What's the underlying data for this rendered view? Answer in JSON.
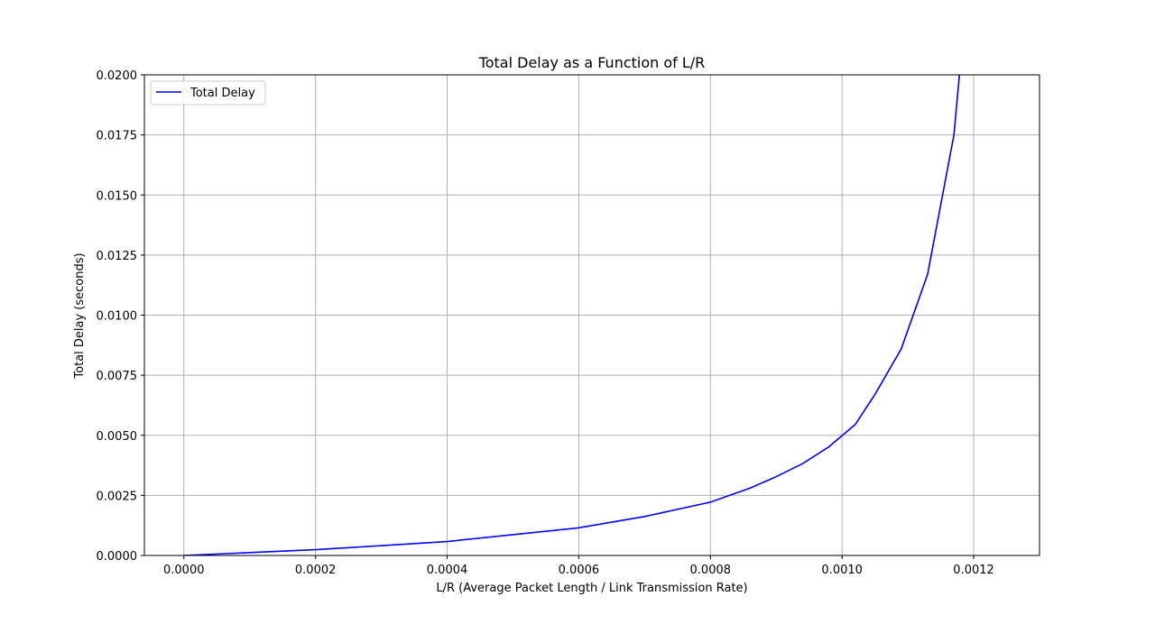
{
  "chart_data": {
    "type": "line",
    "title": "Total Delay as a Function of L/R",
    "xlabel": "L/R (Average Packet Length / Link Transmission Rate)",
    "ylabel": "Total Delay (seconds)",
    "xlim": [
      -6e-05,
      0.0013
    ],
    "ylim": [
      0.0,
      0.02
    ],
    "x_ticks": [
      "0.0000",
      "0.0002",
      "0.0004",
      "0.0006",
      "0.0008",
      "0.0010",
      "0.0012"
    ],
    "x_tick_values": [
      0.0,
      0.0002,
      0.0004,
      0.0006,
      0.0008,
      0.001,
      0.0012
    ],
    "y_ticks": [
      "0.0000",
      "0.0025",
      "0.0050",
      "0.0075",
      "0.0100",
      "0.0125",
      "0.0150",
      "0.0175",
      "0.0200"
    ],
    "y_tick_values": [
      0.0,
      0.0025,
      0.005,
      0.0075,
      0.01,
      0.0125,
      0.015,
      0.0175,
      0.02
    ],
    "grid": true,
    "legend_position": "top-left",
    "series": [
      {
        "name": "Total Delay",
        "color": "#0000ff",
        "x": [
          0.0,
          0.0002,
          0.0004,
          0.0006,
          0.0007,
          0.0008,
          0.00086,
          0.0009,
          0.00094,
          0.00098,
          0.00102,
          0.00105,
          0.00109,
          0.00113,
          0.00117,
          0.00118
        ],
        "y": [
          0.0,
          0.00024,
          0.00058,
          0.00115,
          0.00162,
          0.00222,
          0.0028,
          0.00328,
          0.00382,
          0.00452,
          0.00545,
          0.0067,
          0.0086,
          0.0117,
          0.0175,
          0.0205
        ]
      }
    ]
  }
}
